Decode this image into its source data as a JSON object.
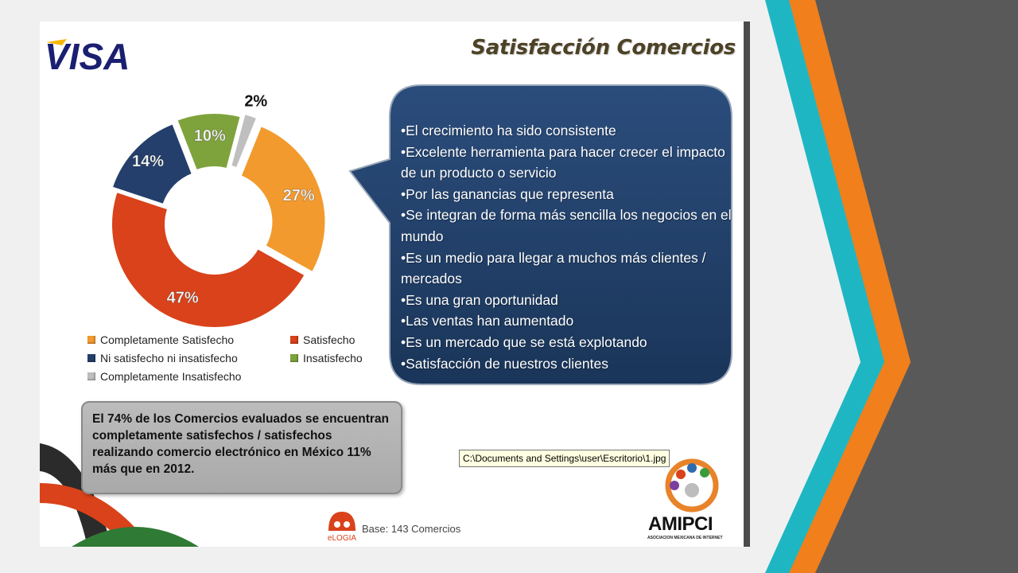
{
  "slide": {
    "title": "Satisfacción Comercios",
    "brand_logo": "VISA",
    "bullets": [
      "•El crecimiento ha sido consistente",
      "•Excelente herramienta para hacer crecer el impacto de un producto o servicio",
      "•Por las ganancias que representa",
      "•Se integran de forma más sencilla los negocios en el mundo",
      "•Es un medio para llegar a muchos más clientes / mercados",
      "•Es una gran oportunidad",
      "•Las ventas han aumentado",
      "•Es un mercado que se está explotando",
      "•Satisfacción de nuestros clientes"
    ],
    "summary": "El 74% de los Comercios  evaluados se encuentran completamente satisfechos / satisfechos realizando comercio electrónico en México 11% más que en 2012.",
    "file_tooltip": "C:\\Documents and Settings\\user\\Escritorio\\1.jpg",
    "base_note": "Base: 143 Comercios",
    "amipci_name": "AMIPCI",
    "amipci_subtitle": "ASOCIACION MEXICANA DE INTERNET",
    "elogia_name": "eLOGIA"
  },
  "chart_data": {
    "type": "pie",
    "style": "donut",
    "title": "",
    "legend_position": "bottom",
    "categories": [
      "Completamente Satisfecho",
      "Satisfecho",
      "Ni satisfecho ni insatisfecho",
      "Insatisfecho",
      "Completamente Insatisfecho"
    ],
    "values": [
      27,
      47,
      14,
      10,
      2
    ],
    "labels": [
      "27%",
      "47%",
      "14%",
      "10%",
      "2%"
    ],
    "colors": [
      "#f29a2e",
      "#d9421a",
      "#243f6b",
      "#7ea33c",
      "#bfbfbf"
    ]
  },
  "theme": {
    "bubble_color": "#1f3d66",
    "background": "#f0f0f0",
    "panel_dark": "#595959",
    "stripe_teal": "#1fb6c4",
    "stripe_orange": "#f07f1c"
  }
}
